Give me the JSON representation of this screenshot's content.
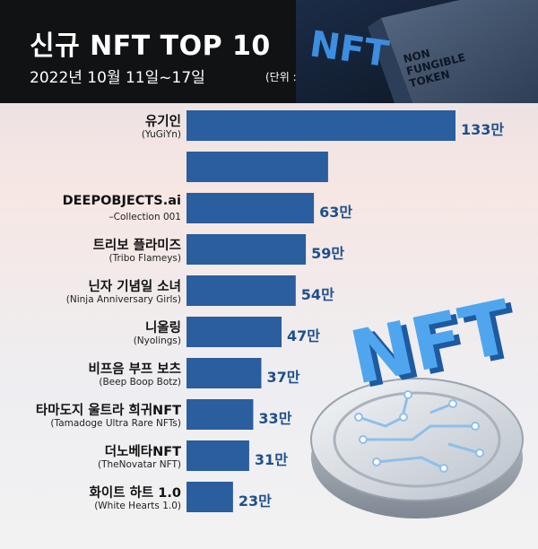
{
  "header": {
    "title": "신규 NFT TOP 10",
    "subtitle": "2022년 10월 11일~17일",
    "unit": "(단위 : 달러)",
    "logo_text": "NFT",
    "tagline": [
      "NON",
      "FUNGIBLE",
      "TOKEN"
    ]
  },
  "decoration": {
    "big_text": "NFT"
  },
  "colors": {
    "bar": "#2a5e9e",
    "value": "#1f4f8c",
    "header_bg": "#111214"
  },
  "chart_data": {
    "type": "bar",
    "orientation": "horizontal",
    "title": "신규 NFT TOP 10",
    "unit": "(단위 : 달러)",
    "categories": [
      {
        "name": "유기인",
        "sub": "(YuGiYn)"
      },
      {
        "name": "",
        "sub": ""
      },
      {
        "name": "DEEPOBJECTS.ai",
        "sub": "–Collection 001"
      },
      {
        "name": "트리보 플라미즈",
        "sub": "(Tribo Flameys)"
      },
      {
        "name": "닌자 기념일 소녀",
        "sub": "(Ninja Anniversary Girls)"
      },
      {
        "name": "니올링",
        "sub": "(Nyolings)"
      },
      {
        "name": "비프음 부프 보츠",
        "sub": "(Beep Boop Botz)"
      },
      {
        "name": "타마도지 울트라 희귀NFT",
        "sub": "(Tamadoge Ultra Rare NFTs)"
      },
      {
        "name": "더노베타NFT",
        "sub": "(TheNovatar NFT)"
      },
      {
        "name": "화이트 하트 1.0",
        "sub": "(White Hearts 1.0)"
      }
    ],
    "values": [
      133,
      70,
      63,
      59,
      54,
      47,
      37,
      33,
      31,
      23
    ],
    "value_labels": [
      "133만",
      "",
      "63만",
      "59만",
      "54만",
      "47만",
      "37만",
      "33만",
      "31만",
      "23만"
    ],
    "xlim": [
      0,
      140
    ],
    "grid": false,
    "legend": "none"
  }
}
